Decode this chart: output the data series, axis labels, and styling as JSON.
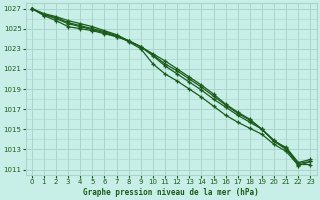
{
  "title": "Graphe pression niveau de la mer (hPa)",
  "bg_color": "#c8eee8",
  "grid_color": "#aad4cc",
  "line_color": "#1a5c1a",
  "xlim": [
    -0.5,
    23.5
  ],
  "ylim": [
    1010.5,
    1027.5
  ],
  "yticks": [
    1011,
    1013,
    1015,
    1017,
    1019,
    1021,
    1023,
    1025,
    1027
  ],
  "xticks": [
    0,
    1,
    2,
    3,
    4,
    5,
    6,
    7,
    8,
    9,
    10,
    11,
    12,
    13,
    14,
    15,
    16,
    17,
    18,
    19,
    20,
    21,
    22,
    23
  ],
  "series": [
    [
      1027.0,
      1026.3,
      1025.8,
      1025.2,
      1025.0,
      1024.8,
      1024.5,
      1024.2,
      1023.8,
      1023.2,
      1022.5,
      1021.8,
      1021.0,
      1020.2,
      1019.4,
      1018.5,
      1017.5,
      1016.7,
      1016.0,
      1015.0,
      1013.8,
      1013.0,
      1011.5,
      1011.5
    ],
    [
      1027.0,
      1026.4,
      1026.0,
      1025.5,
      1025.2,
      1024.9,
      1024.6,
      1024.2,
      1023.8,
      1023.2,
      1022.4,
      1021.5,
      1020.8,
      1020.0,
      1019.2,
      1018.3,
      1017.4,
      1016.6,
      1015.9,
      1015.0,
      1013.9,
      1013.1,
      1011.6,
      1011.8
    ],
    [
      1027.0,
      1026.5,
      1026.2,
      1025.8,
      1025.5,
      1025.2,
      1024.8,
      1024.4,
      1023.8,
      1023.2,
      1022.3,
      1021.3,
      1020.5,
      1019.7,
      1018.9,
      1018.0,
      1017.2,
      1016.4,
      1015.7,
      1015.0,
      1013.8,
      1013.2,
      1011.7,
      1012.0
    ],
    [
      1027.0,
      1026.4,
      1026.1,
      1025.6,
      1025.3,
      1025.0,
      1024.7,
      1024.3,
      1023.7,
      1023.0,
      1021.5,
      1020.5,
      1019.8,
      1019.0,
      1018.2,
      1017.3,
      1016.4,
      1015.7,
      1015.1,
      1014.5,
      1013.5,
      1012.8,
      1011.4,
      1011.8
    ]
  ]
}
